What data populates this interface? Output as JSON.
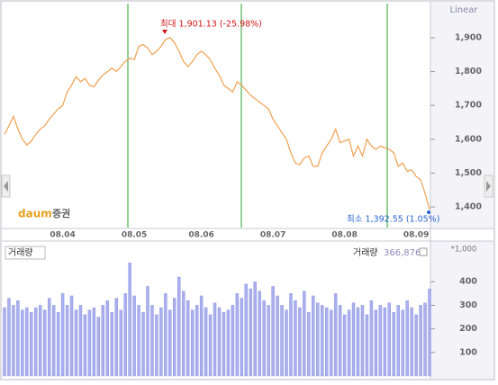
{
  "chart_data": [
    {
      "type": "line",
      "scale_label": "Linear",
      "categories": [
        null,
        null,
        null,
        null,
        null,
        null,
        null,
        null,
        null,
        null,
        null,
        null,
        null,
        "08.04",
        null,
        null,
        null,
        null,
        null,
        null,
        null,
        null,
        null,
        null,
        null,
        null,
        null,
        null,
        null,
        "08.05",
        null,
        null,
        null,
        null,
        null,
        null,
        null,
        null,
        null,
        null,
        null,
        null,
        null,
        null,
        "08.06",
        null,
        null,
        null,
        null,
        null,
        null,
        null,
        null,
        null,
        null,
        null,
        null,
        null,
        null,
        null,
        "08.07",
        null,
        null,
        null,
        null,
        null,
        null,
        null,
        null,
        null,
        null,
        null,
        null,
        null,
        null,
        null,
        "08.08",
        null,
        null,
        null,
        null,
        null,
        null,
        null,
        null,
        null,
        null,
        null,
        null,
        null,
        null,
        null,
        "08.09",
        null,
        null,
        null
      ],
      "values": [
        1615,
        1640,
        1668,
        1630,
        1600,
        1583,
        1595,
        1615,
        1630,
        1640,
        1660,
        1675,
        1690,
        1700,
        1740,
        1760,
        1785,
        1770,
        1780,
        1760,
        1755,
        1775,
        1790,
        1800,
        1810,
        1800,
        1815,
        1830,
        1840,
        1835,
        1875,
        1880,
        1870,
        1850,
        1860,
        1875,
        1895,
        1901.13,
        1885,
        1860,
        1830,
        1815,
        1830,
        1850,
        1860,
        1850,
        1835,
        1810,
        1790,
        1760,
        1750,
        1740,
        1770,
        1760,
        1745,
        1730,
        1720,
        1710,
        1700,
        1690,
        1660,
        1640,
        1620,
        1600,
        1560,
        1530,
        1525,
        1545,
        1550,
        1520,
        1520,
        1560,
        1580,
        1600,
        1630,
        1590,
        1595,
        1600,
        1550,
        1580,
        1550,
        1600,
        1580,
        1570,
        1580,
        1575,
        1570,
        1560,
        1520,
        1530,
        1505,
        1510,
        1490,
        1480,
        1440,
        1392.55
      ],
      "color": "#f0a050",
      "ylim": [
        1339,
        2001
      ],
      "yticks": [
        {
          "value": 1400,
          "label": "1,400"
        },
        {
          "value": 1500,
          "label": "1,500"
        },
        {
          "value": 1600,
          "label": "1,600"
        },
        {
          "value": 1700,
          "label": "1,700"
        },
        {
          "value": 1800,
          "label": "1,800"
        },
        {
          "value": 1900,
          "label": "1,900"
        }
      ],
      "annotations": [
        {
          "text": "최대 1,901.13 (-25.98%)",
          "color": "#d01818"
        },
        {
          "text": "최소 1,392.55 (1.05%)",
          "color": "#2a64d0"
        }
      ],
      "logo": "daum",
      "logo_sub": "증권"
    },
    {
      "type": "bar",
      "title": "거래량",
      "summary_label": "거래량",
      "summary_value": "366,876",
      "unit": "*1,000",
      "values": [
        290,
        330,
        300,
        320,
        280,
        290,
        270,
        290,
        300,
        280,
        330,
        300,
        270,
        350,
        300,
        340,
        280,
        300,
        260,
        280,
        290,
        250,
        300,
        320,
        270,
        330,
        280,
        350,
        480,
        340,
        300,
        270,
        380,
        300,
        260,
        290,
        350,
        280,
        330,
        420,
        360,
        320,
        280,
        300,
        340,
        290,
        260,
        310,
        290,
        270,
        280,
        300,
        350,
        330,
        390,
        370,
        400,
        360,
        320,
        300,
        380,
        340,
        300,
        280,
        350,
        320,
        290,
        360,
        270,
        340,
        310,
        300,
        290,
        280,
        350,
        300,
        260,
        280,
        310,
        290,
        300,
        260,
        320,
        280,
        300,
        290,
        310,
        270,
        300,
        280,
        320,
        290,
        260,
        300,
        310,
        370
      ],
      "color": "#aab0ee",
      "ylim": [
        0,
        565
      ],
      "yticks": [
        100,
        200,
        300,
        400
      ]
    }
  ]
}
